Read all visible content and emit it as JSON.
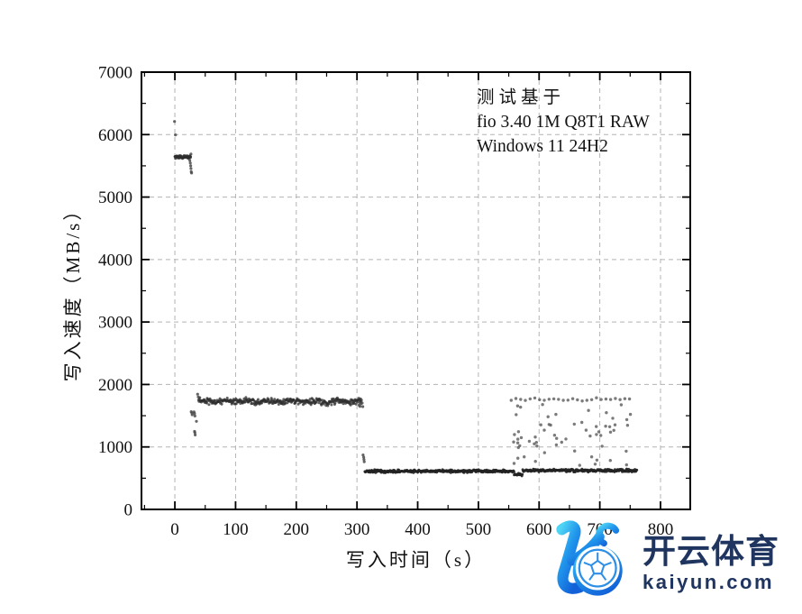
{
  "figure": {
    "background": "#ffffff"
  },
  "chart_data": {
    "type": "scatter",
    "title": "",
    "xlabel": "写入时间（s）",
    "ylabel": "写入速度（MB/s）",
    "xlim": [
      -55,
      849
    ],
    "ylim": [
      0,
      7000
    ],
    "x_ticks": {
      "major": [
        0,
        100,
        200,
        300,
        400,
        500,
        600,
        700,
        800
      ],
      "labels": [
        "0",
        "100",
        "200",
        "300",
        "400",
        "500",
        "600",
        "700",
        "800"
      ],
      "minor_step": 50
    },
    "y_ticks": {
      "major": [
        0,
        1000,
        2000,
        3000,
        4000,
        5000,
        6000,
        7000
      ],
      "labels": [
        "0",
        "1000",
        "2000",
        "3000",
        "4000",
        "5000",
        "6000",
        "7000"
      ],
      "minor_step": 500
    },
    "grid": {
      "on": true,
      "style": "dashed",
      "color": "#b3b3b3"
    },
    "legend": {
      "visible": false
    },
    "annotation": {
      "lines": [
        "测试基于",
        "fio 3.40 1M Q8T1 RAW",
        "Windows 11 24H2"
      ]
    },
    "point_default": {
      "color": "#4a4a4a",
      "opacity": 0.85,
      "r": 1.6
    },
    "prng_seed": 20250521,
    "series": [
      {
        "name": "write-speed",
        "segments": [
          {
            "kind": "points",
            "pts": [
              [
                -0.5,
                6210
              ],
              [
                1,
                5995
              ]
            ]
          },
          {
            "kind": "band",
            "x0": 0,
            "x1": 26,
            "step": 0.5,
            "y": 5640,
            "jitter": 30,
            "color": "#2e2e2e",
            "opacity": 0.85,
            "r": 1.5
          },
          {
            "kind": "points",
            "pts": [
              [
                26.5,
                5690
              ],
              [
                24.5,
                5585
              ],
              [
                25.5,
                5545
              ],
              [
                26,
                5500
              ],
              [
                26.5,
                5455
              ],
              [
                27,
                5405
              ],
              [
                27.5,
                5385
              ]
            ]
          },
          {
            "kind": "points",
            "pts": [
              [
                27,
                1565
              ],
              [
                28,
                1545
              ],
              [
                28.5,
                1515
              ],
              [
                31.5,
                1560
              ],
              [
                32.5,
                1535
              ],
              [
                33,
                1495
              ],
              [
                35.5,
                1410
              ],
              [
                32.5,
                1248
              ],
              [
                33,
                1228
              ],
              [
                33.5,
                1192
              ]
            ]
          },
          {
            "kind": "points",
            "pts": [
              [
                37.5,
                1845
              ],
              [
                38.5,
                1800
              ]
            ]
          },
          {
            "kind": "band",
            "x0": 39,
            "x1": 308,
            "step": 0.75,
            "y": 1728,
            "jitter": 60,
            "wave_amp": 10,
            "wave_period": 37,
            "color": "#2e2e2e",
            "opacity": 0.75,
            "r": 1.5
          },
          {
            "kind": "points",
            "pts": [
              [
                303.5,
                1668
              ],
              [
                305,
                1648
              ],
              [
                306.5,
                1690
              ],
              [
                308.5,
                1703
              ],
              [
                309.5,
                1645
              ]
            ]
          },
          {
            "kind": "points",
            "pts": [
              [
                310,
                872
              ],
              [
                311,
                835
              ],
              [
                311.5,
                800
              ],
              [
                312,
                764
              ]
            ]
          },
          {
            "kind": "band",
            "x0": 313,
            "x1": 559,
            "step": 0.8,
            "y": 612,
            "jitter": 28,
            "color": "#222222",
            "opacity": 0.9,
            "r": 1.5
          },
          {
            "kind": "band",
            "x0": 559,
            "x1": 573,
            "step": 0.9,
            "y": 556,
            "jitter": 34,
            "color": "#222222",
            "opacity": 0.9,
            "r": 1.5
          },
          {
            "kind": "band",
            "x0": 573,
            "x1": 761,
            "step": 0.8,
            "y": 622,
            "jitter": 28,
            "color": "#222222",
            "opacity": 0.9,
            "r": 1.5
          },
          {
            "kind": "band",
            "x0": 554,
            "x1": 752,
            "step": 7.8,
            "y": 1762,
            "jitter": 30,
            "color": "#5a5a5a",
            "opacity": 0.8,
            "r": 1.7
          },
          {
            "kind": "cloud",
            "x0": 553,
            "x1": 757,
            "n": 62,
            "ymin": 705,
            "ymax": 1690,
            "color": "#5a5a5a",
            "opacity": 0.8,
            "r": 1.7
          }
        ]
      }
    ]
  },
  "watermark": {
    "brand": "开云体育",
    "domain": "kaiyun.com",
    "colors": {
      "text": "#1f3560",
      "logo_cyan": "#4fd4f4",
      "logo_blue": "#2196ec",
      "logo_deep_blue": "#1261d8",
      "ball_stroke": "#2e8fe6"
    }
  }
}
